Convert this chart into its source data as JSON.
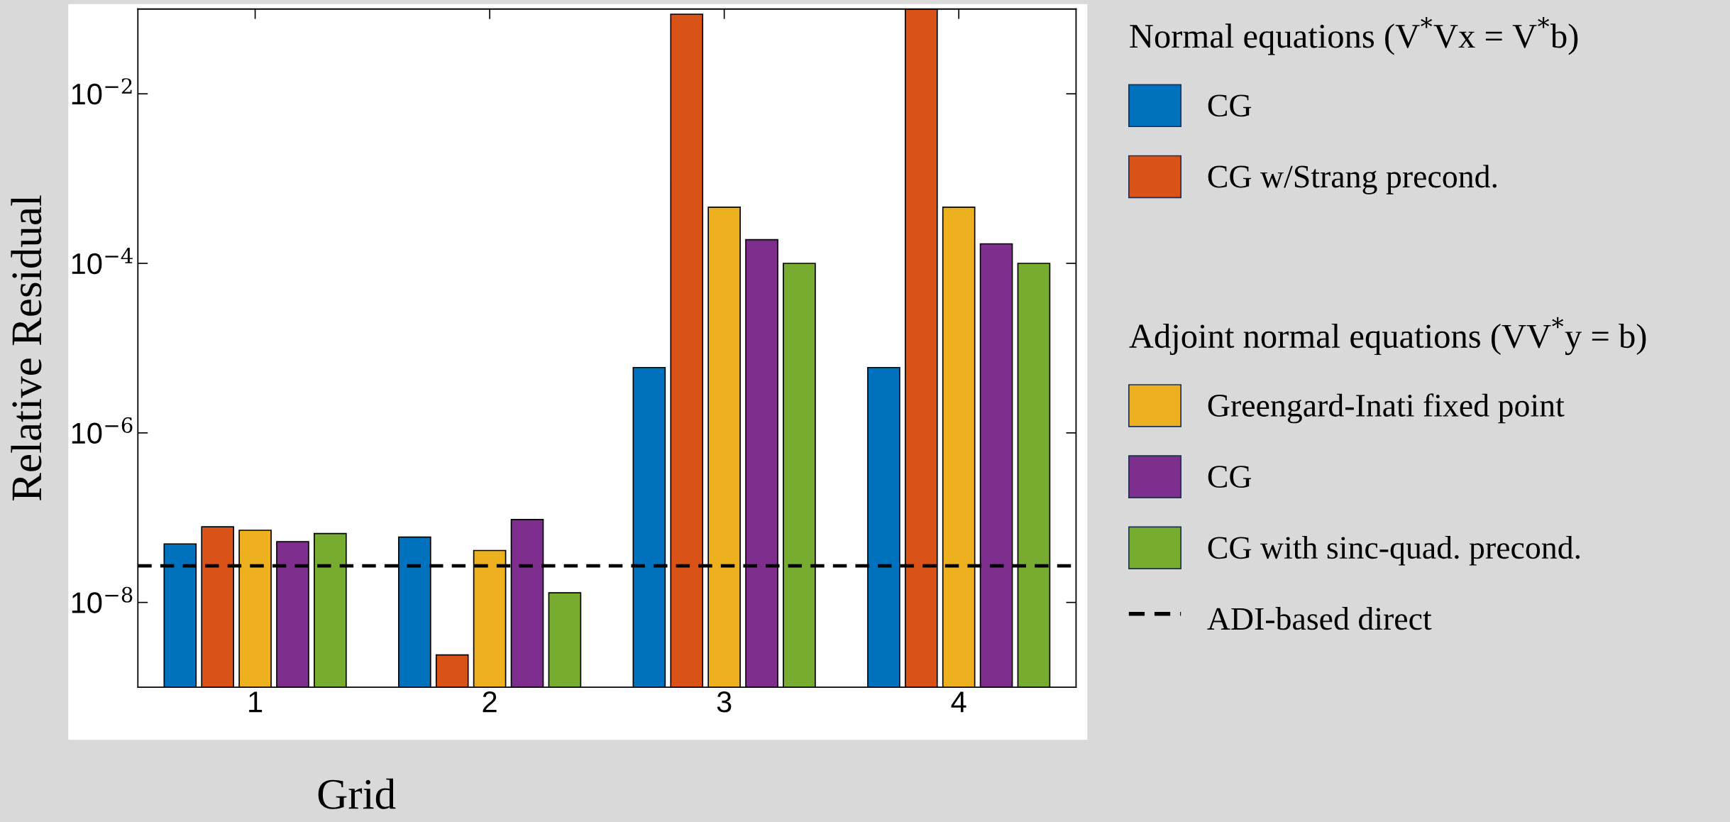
{
  "chart_data": {
    "type": "bar",
    "xlabel": "Grid",
    "ylabel": "Relative Residual",
    "categories": [
      "1",
      "2",
      "3",
      "4"
    ],
    "series": [
      {
        "name": "CG",
        "color": "#0072bd",
        "values": [
          4.9e-08,
          5.9e-08,
          5.9e-06,
          5.9e-06
        ]
      },
      {
        "name": "CG w/Strang precond.",
        "color": "#d95319",
        "values": [
          7.8e-08,
          2.4e-09,
          0.087,
          0.1
        ]
      },
      {
        "name": "Greengard-Inati fixed point",
        "color": "#edb120",
        "values": [
          7.1e-08,
          4.1e-08,
          0.00046,
          0.00046
        ]
      },
      {
        "name": "CG",
        "color": "#7e2f8e",
        "values": [
          5.2e-08,
          9.5e-08,
          0.00019,
          0.00017
        ]
      },
      {
        "name": "CG with sinc-quad. precond.",
        "color": "#77ac30",
        "values": [
          6.5e-08,
          1.3e-08,
          0.0001,
          0.0001
        ]
      }
    ],
    "legend_title": "Normal equations (V$^{*}$Vx = V$^{*}$b)",
    "annotations": [
      "Adjoint normal equations (VV$^{*}$y = b)"
    ],
    "ref_lines": [
      {
        "axis": "y",
        "value": 2.7e-08,
        "label": "ADI-based direct",
        "color": "#000000",
        "line_style": "dashed"
      }
    ],
    "log": "y",
    "ylim": [
      1e-09,
      0.1
    ],
    "yticks": [
      {
        "value": 1e-08,
        "label": "10$^{−8}$"
      },
      {
        "value": 1e-06,
        "label": "10$^{−6}$"
      },
      {
        "value": 0.0001,
        "label": "10$^{−4}$"
      },
      {
        "value": 0.01,
        "label": "10$^{−2}$"
      }
    ],
    "grid": false,
    "legend": "right"
  }
}
